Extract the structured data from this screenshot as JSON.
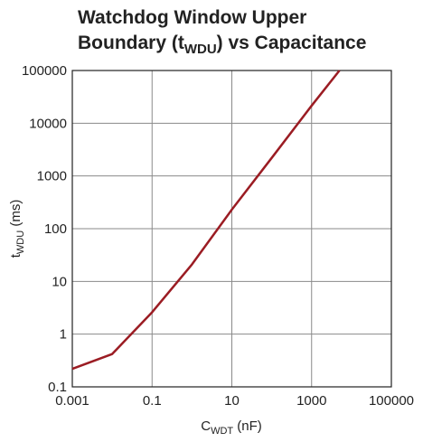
{
  "chart_data": {
    "type": "line",
    "title": {
      "line1": "Watchdog Window Upper",
      "line2_start": "Boundary (t",
      "line2_sub": "WDU",
      "line2_end": ") vs Capacitance"
    },
    "xlabel": {
      "main": "C",
      "sub": "WDT",
      "end": " (nF)"
    },
    "ylabel": {
      "main": "t",
      "sub": "WDU",
      "end": " (ms)"
    },
    "x": [
      0.001,
      0.01,
      0.1,
      1,
      10,
      100,
      1000,
      5000
    ],
    "series": [
      {
        "name": "tWDU",
        "color": "#9b1c23",
        "values": [
          0.22,
          0.42,
          2.6,
          21,
          230,
          2200,
          21500,
          100000
        ]
      }
    ],
    "xscale": "log",
    "yscale": "log",
    "xlim": [
      0.001,
      100000
    ],
    "ylim": [
      0.1,
      100000
    ],
    "xticks": [
      0.001,
      0.1,
      10,
      1000,
      100000
    ],
    "yticks": [
      0.1,
      1,
      10,
      100,
      1000,
      10000,
      100000
    ],
    "grid": true
  }
}
